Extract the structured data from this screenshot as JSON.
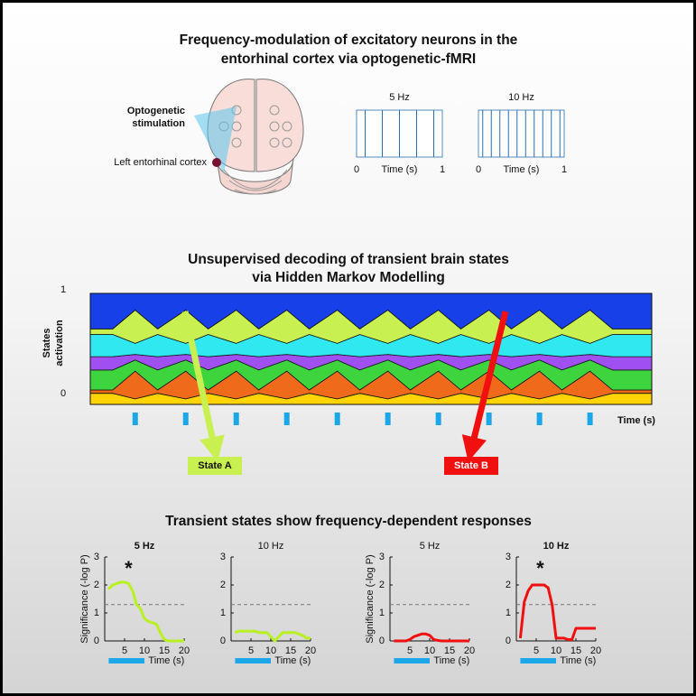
{
  "header": {
    "title_lines": [
      "Frequency-modulation of excitatory neurons in the",
      "entorhinal cortex via optogenetic-fMRI"
    ]
  },
  "illustration": {
    "stim_label_lines": [
      "Optogenetic",
      "stimulation"
    ],
    "region_label": "Left entorhinal cortex",
    "pulse_panels": [
      {
        "label": "5 Hz",
        "pulses": [
          0.1,
          0.3,
          0.5,
          0.7,
          0.9
        ],
        "xlim": [
          0,
          1
        ],
        "xticks": [
          0,
          1
        ],
        "xlabel": "Time (s)"
      },
      {
        "label": "10 Hz",
        "pulses": [
          0.05,
          0.15,
          0.25,
          0.35,
          0.45,
          0.55,
          0.65,
          0.75,
          0.85,
          0.95
        ],
        "xlim": [
          0,
          1
        ],
        "xticks": [
          0,
          1
        ],
        "xlabel": "Time (s)"
      }
    ]
  },
  "hmm": {
    "title_lines": [
      "Unsupervised decoding of transient brain states",
      "via Hidden Markov Modelling"
    ],
    "ylabel_lines": [
      "States",
      "activation"
    ],
    "ylim": [
      0,
      1
    ],
    "yticks": [
      0,
      1
    ],
    "xlabel": "Time (s)",
    "xlim": [
      0,
      100
    ],
    "x": [
      0,
      4,
      8,
      12,
      17,
      21,
      26,
      30,
      35,
      39,
      44,
      48,
      53,
      57,
      62,
      66,
      71,
      75,
      80,
      84,
      89,
      93,
      100
    ],
    "layers": [
      {
        "color": "#ffd400",
        "values": [
          0.1,
          0.1,
          0.05,
          0.1,
          0.05,
          0.1,
          0.05,
          0.1,
          0.05,
          0.1,
          0.05,
          0.1,
          0.05,
          0.1,
          0.05,
          0.1,
          0.05,
          0.1,
          0.05,
          0.1,
          0.05,
          0.1,
          0.1
        ]
      },
      {
        "color": "#f06a1c",
        "values": [
          0.03,
          0.03,
          0.25,
          0.03,
          0.25,
          0.03,
          0.25,
          0.03,
          0.25,
          0.03,
          0.25,
          0.03,
          0.25,
          0.03,
          0.25,
          0.03,
          0.25,
          0.03,
          0.25,
          0.03,
          0.25,
          0.03,
          0.03
        ]
      },
      {
        "color": "#3ed43e",
        "values": [
          0.18,
          0.18,
          0.1,
          0.18,
          0.1,
          0.18,
          0.1,
          0.18,
          0.1,
          0.18,
          0.1,
          0.18,
          0.1,
          0.18,
          0.1,
          0.18,
          0.1,
          0.18,
          0.1,
          0.18,
          0.1,
          0.18,
          0.18
        ]
      },
      {
        "color": "#a050f0",
        "values": [
          0.12,
          0.12,
          0.05,
          0.12,
          0.05,
          0.12,
          0.05,
          0.12,
          0.05,
          0.12,
          0.05,
          0.12,
          0.05,
          0.12,
          0.05,
          0.12,
          0.05,
          0.12,
          0.05,
          0.12,
          0.05,
          0.12,
          0.12
        ]
      },
      {
        "color": "#30e8f0",
        "values": [
          0.2,
          0.2,
          0.1,
          0.2,
          0.1,
          0.2,
          0.1,
          0.2,
          0.1,
          0.2,
          0.1,
          0.2,
          0.1,
          0.2,
          0.1,
          0.2,
          0.1,
          0.2,
          0.1,
          0.2,
          0.1,
          0.2,
          0.2
        ]
      },
      {
        "color": "#c8f050",
        "values": [
          0.05,
          0.05,
          0.3,
          0.05,
          0.3,
          0.05,
          0.3,
          0.05,
          0.3,
          0.05,
          0.3,
          0.05,
          0.3,
          0.05,
          0.3,
          0.05,
          0.3,
          0.05,
          0.3,
          0.05,
          0.3,
          0.05,
          0.05
        ]
      },
      {
        "color": "#1840e8",
        "values": [
          0.32,
          0.32,
          0.15,
          0.32,
          0.15,
          0.32,
          0.15,
          0.32,
          0.15,
          0.32,
          0.15,
          0.32,
          0.15,
          0.32,
          0.15,
          0.32,
          0.15,
          0.32,
          0.15,
          0.32,
          0.15,
          0.32,
          0.32
        ]
      }
    ],
    "stimuli": [
      8,
      17,
      26,
      35,
      44,
      53,
      62,
      71,
      80,
      89
    ],
    "stimulus_color": "#1ca8e8",
    "states": [
      {
        "label": "State A",
        "color": "#c8f050"
      },
      {
        "label": "State B",
        "color": "#f01010"
      }
    ]
  },
  "results": {
    "title": "Transient states show frequency-dependent responses",
    "charts": [
      {
        "title": "5 Hz",
        "title_bold": true,
        "ylabel": "Significance (-log P)",
        "color": "#b8f020",
        "annotation": "*",
        "x": [
          1,
          2,
          3,
          4,
          5,
          6,
          7,
          8,
          9,
          10,
          11,
          12,
          13,
          14,
          15,
          16,
          17,
          18,
          19,
          20
        ],
        "values": [
          1.85,
          2.0,
          2.05,
          2.1,
          2.1,
          2.05,
          1.8,
          1.3,
          1.15,
          0.8,
          0.7,
          0.65,
          0.6,
          0.3,
          0.05,
          0,
          0,
          0,
          0,
          0
        ],
        "xlim": [
          0,
          20
        ],
        "xticks": [
          5,
          10,
          15,
          20
        ],
        "ylim": [
          0,
          3
        ],
        "yticks": [
          0,
          1,
          2,
          3
        ],
        "xlabel": "Time (s)",
        "threshold": 1.3,
        "stimulus": [
          1,
          10
        ]
      },
      {
        "title": "10 Hz",
        "title_bold": false,
        "color": "#b8f020",
        "x": [
          1,
          2,
          3,
          4,
          5,
          6,
          7,
          8,
          9,
          10,
          11,
          12,
          13,
          14,
          15,
          16,
          17,
          18,
          19,
          20
        ],
        "values": [
          0.3,
          0.35,
          0.35,
          0.35,
          0.35,
          0.35,
          0.3,
          0.3,
          0.3,
          0.15,
          0,
          0.15,
          0.3,
          0.3,
          0.3,
          0.3,
          0.25,
          0.2,
          0.1,
          0.1
        ],
        "xlim": [
          0,
          20
        ],
        "xticks": [
          5,
          10,
          15,
          20
        ],
        "ylim": [
          0,
          3
        ],
        "yticks": [
          0,
          1,
          2,
          3
        ],
        "xlabel": "Time (s)",
        "threshold": 1.3,
        "stimulus": [
          1,
          10
        ]
      },
      {
        "title": "5 Hz",
        "title_bold": false,
        "ylabel": "Significance (-log P)",
        "color": "#f01010",
        "x": [
          1,
          2,
          3,
          4,
          5,
          6,
          7,
          8,
          9,
          10,
          11,
          12,
          13,
          14,
          15,
          16,
          17,
          18,
          19,
          20
        ],
        "values": [
          0,
          0,
          0,
          0,
          0.05,
          0.15,
          0.2,
          0.25,
          0.25,
          0.2,
          0.05,
          0.02,
          0,
          0,
          0,
          0,
          0,
          0,
          0,
          0
        ],
        "xlim": [
          0,
          20
        ],
        "xticks": [
          5,
          10,
          15,
          20
        ],
        "ylim": [
          0,
          3
        ],
        "yticks": [
          0,
          1,
          2,
          3
        ],
        "xlabel": "Time (s)",
        "threshold": 1.3,
        "stimulus": [
          1,
          10
        ]
      },
      {
        "title": "10 Hz",
        "title_bold": true,
        "color": "#f01010",
        "annotation": "*",
        "x": [
          1,
          2,
          3,
          4,
          5,
          6,
          7,
          8,
          9,
          10,
          11,
          12,
          13,
          14,
          15,
          16,
          17,
          18,
          19,
          20
        ],
        "values": [
          0.1,
          1.4,
          1.8,
          2.0,
          2.0,
          2.0,
          2.0,
          1.9,
          1.3,
          0.1,
          0.1,
          0.1,
          0.05,
          0.05,
          0.45,
          0.45,
          0.45,
          0.45,
          0.45,
          0.45
        ],
        "xlim": [
          0,
          20
        ],
        "xticks": [
          5,
          10,
          15,
          20
        ],
        "ylim": [
          0,
          3
        ],
        "yticks": [
          0,
          1,
          2,
          3
        ],
        "xlabel": "Time (s)",
        "threshold": 1.3,
        "stimulus": [
          1,
          10
        ]
      }
    ]
  }
}
